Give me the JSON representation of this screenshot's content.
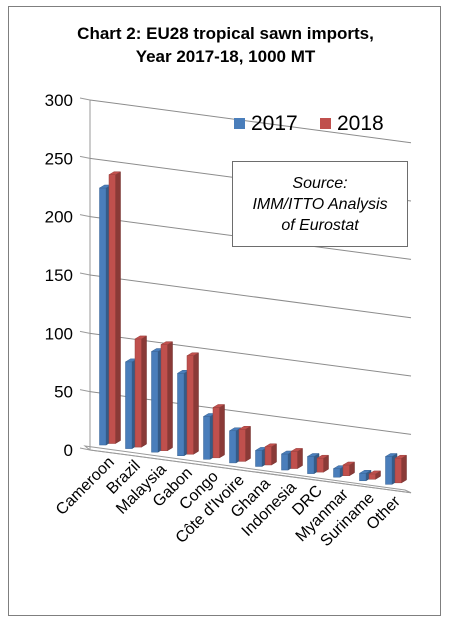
{
  "chart_data": {
    "type": "bar",
    "title_line1": "Chart 2: EU28 tropical sawn imports,",
    "title_line2": "Year 2017-18, 1000 MT",
    "categories": [
      "Cameroon",
      "Brazil",
      "Malaysia",
      "Gabon",
      "Congo",
      "Côte d'Ivoire",
      "Ghana",
      "Indonesia",
      "DRC",
      "Myanmar",
      "Suriname",
      "Other"
    ],
    "series": [
      {
        "name": "2017",
        "color": "#4a7ebb",
        "values": [
          240,
          81,
          94,
          77,
          40,
          30,
          15,
          15,
          16,
          8,
          7,
          26
        ]
      },
      {
        "name": "2018",
        "color": "#c0504d",
        "values": [
          251,
          101,
          99,
          92,
          47,
          30,
          17,
          16,
          13,
          10,
          5,
          23
        ]
      }
    ],
    "yticks": [
      0,
      50,
      100,
      150,
      200,
      250,
      300
    ],
    "ylim": [
      0,
      300
    ],
    "legend_position": "top-right",
    "grid": true,
    "annotation": {
      "line1": "Source:",
      "line2": "IMM/ITTO Analysis",
      "line3": "of Eurostat"
    }
  }
}
